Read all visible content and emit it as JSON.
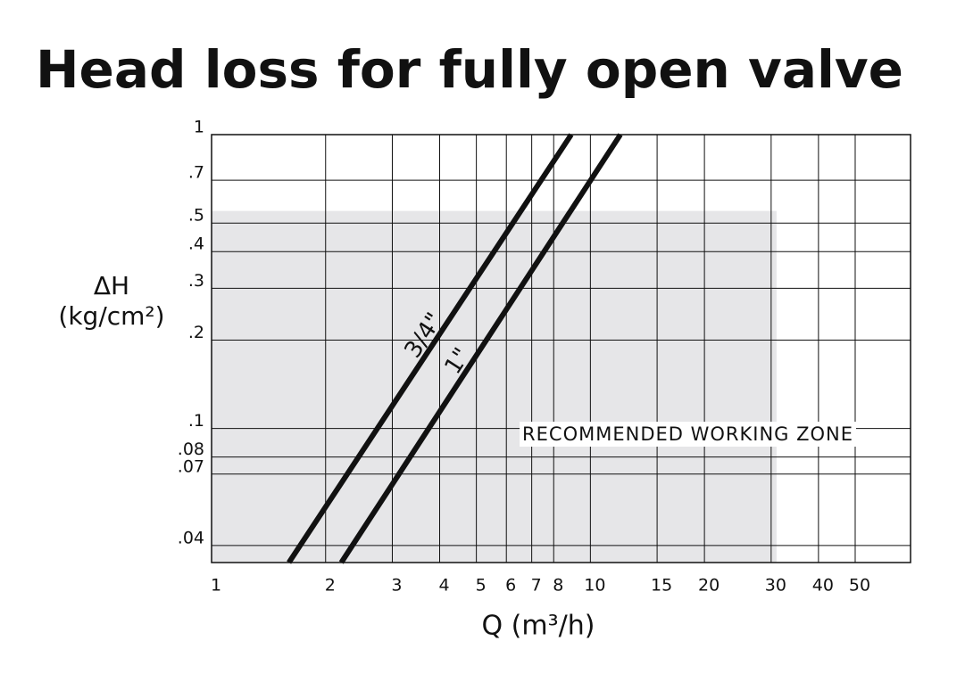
{
  "chart_data": {
    "type": "line",
    "title": "Head loss for fully open valve",
    "x_label": "Q (m³/h)",
    "y_label": [
      "ΔH",
      "(kg/cm²)"
    ],
    "xscale": "log",
    "yscale": "log",
    "xlim": [
      1,
      70
    ],
    "ylim": [
      0.035,
      1
    ],
    "xticks": [
      1,
      2,
      3,
      4,
      5,
      6,
      7,
      8,
      10,
      15,
      20,
      30,
      40,
      50
    ],
    "yticks": [
      1,
      {
        "value": 0.7,
        "label": ".7"
      },
      {
        "value": 0.5,
        "label": ".5"
      },
      {
        "value": 0.4,
        "label": ".4"
      },
      {
        "value": 0.3,
        "label": ".3"
      },
      {
        "value": 0.2,
        "label": ".2"
      },
      {
        "value": 0.1,
        "label": ".1"
      },
      {
        "value": 0.08,
        "label": ".08"
      },
      {
        "value": 0.07,
        "label": ".07"
      },
      {
        "value": 0.04,
        "label": ".04"
      }
    ],
    "grid": true,
    "zone": {
      "label": "RECOMMENDED WORKING ZONE",
      "xlim": [
        1,
        31
      ],
      "ylim": [
        0.035,
        0.55
      ],
      "color": "#e6e6e8"
    },
    "series": [
      {
        "name": "3/4\"",
        "color": "#111111",
        "x": [
          1.6,
          8.9
        ],
        "values": [
          0.035,
          1
        ]
      },
      {
        "name": "1\"",
        "color": "#111111",
        "x": [
          2.2,
          12
        ],
        "values": [
          0.035,
          1
        ]
      }
    ]
  }
}
